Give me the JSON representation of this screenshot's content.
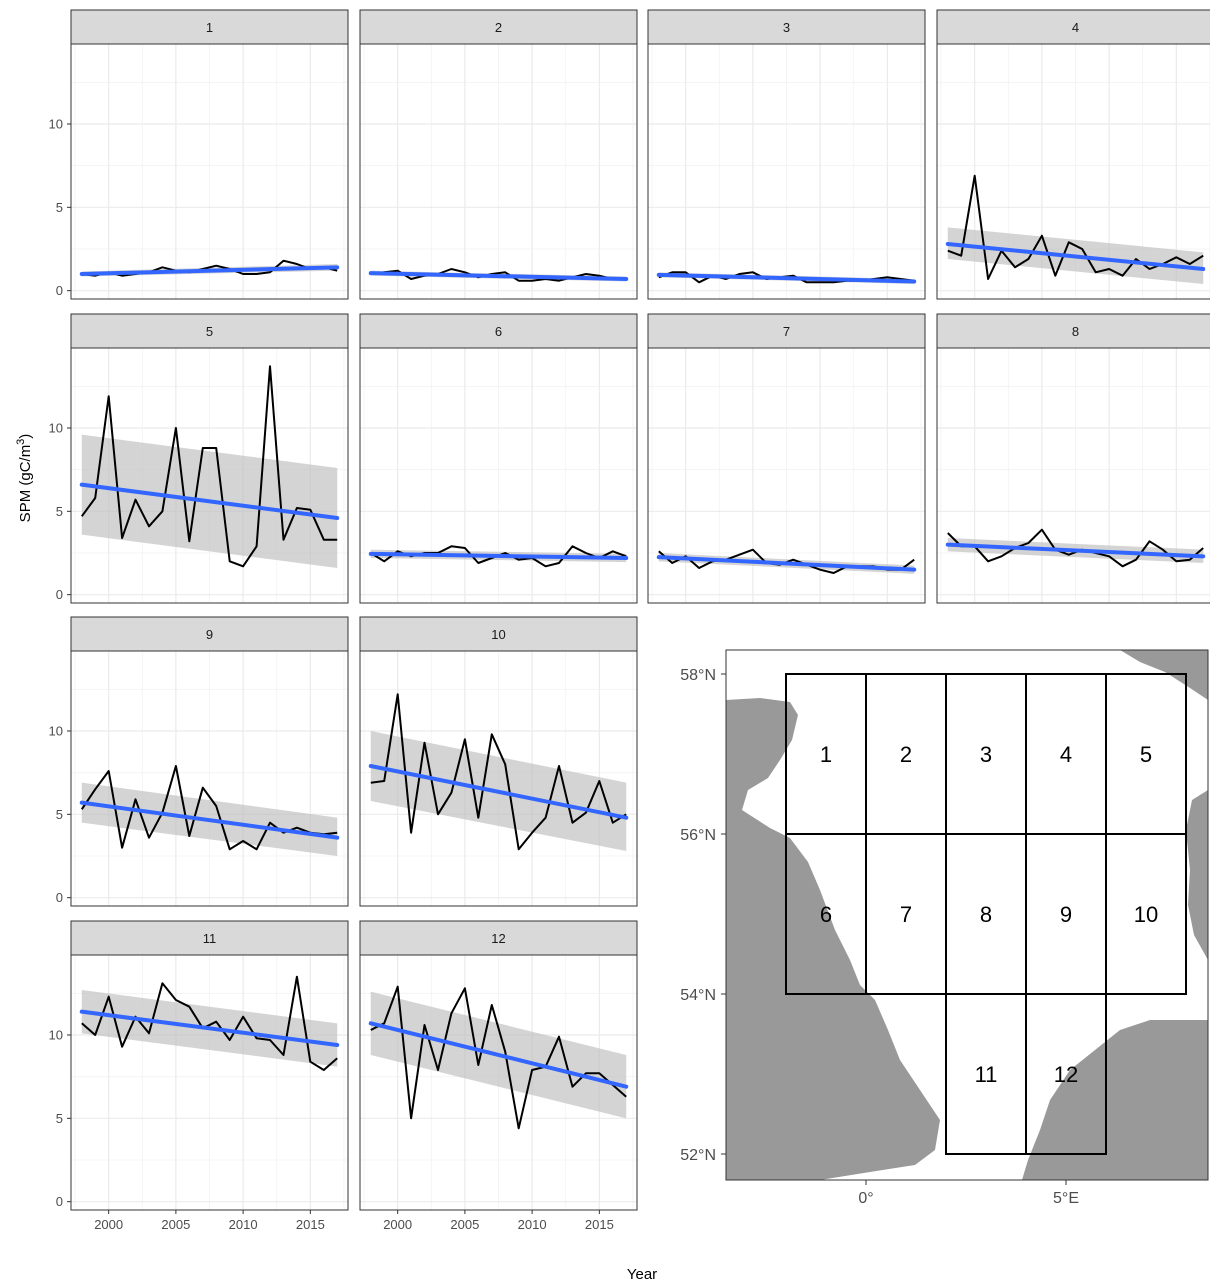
{
  "chart_data": {
    "type": "line",
    "xlabel": "Year",
    "ylabel": "SPM (gC/m",
    "ylabel_sup": "3",
    "ylabel_close": ")",
    "x_ticks": [
      2000,
      2005,
      2010,
      2015
    ],
    "xlim": [
      1997.2,
      2017.8
    ],
    "grid": true,
    "colors": {
      "observed": "#000000",
      "trend": "#3366ff",
      "ci": "#bdbdbd"
    },
    "x": [
      1998,
      1999,
      2000,
      2001,
      2002,
      2003,
      2004,
      2005,
      2006,
      2007,
      2008,
      2009,
      2010,
      2011,
      2012,
      2013,
      2014,
      2015,
      2016,
      2017
    ],
    "panels": [
      {
        "label": "1",
        "ylim": [
          -0.5,
          14.8
        ],
        "y_ticks": [
          0,
          5,
          10
        ],
        "values": [
          1.0,
          0.9,
          1.1,
          0.9,
          1.0,
          1.1,
          1.4,
          1.2,
          1.1,
          1.3,
          1.5,
          1.3,
          1.0,
          1.0,
          1.1,
          1.8,
          1.6,
          1.3,
          1.4,
          1.2
        ],
        "trend": [
          1.0,
          1.4
        ],
        "ci_start": [
          0.85,
          1.15
        ],
        "ci_end": [
          1.2,
          1.6
        ]
      },
      {
        "label": "2",
        "ylim": [
          -0.5,
          14.8
        ],
        "y_ticks": [
          0,
          5,
          10
        ],
        "values": [
          1.0,
          1.1,
          1.2,
          0.7,
          0.9,
          1.0,
          1.3,
          1.1,
          0.8,
          1.0,
          1.1,
          0.6,
          0.6,
          0.7,
          0.6,
          0.8,
          1.0,
          0.9,
          0.7,
          0.7
        ],
        "trend": [
          1.05,
          0.7
        ],
        "ci_start": [
          0.9,
          1.2
        ],
        "ci_end": [
          0.55,
          0.85
        ]
      },
      {
        "label": "3",
        "ylim": [
          -0.5,
          14.8
        ],
        "y_ticks": [
          0,
          5,
          10
        ],
        "values": [
          0.8,
          1.1,
          1.1,
          0.5,
          0.9,
          0.7,
          1.0,
          1.1,
          0.7,
          0.8,
          0.9,
          0.5,
          0.5,
          0.5,
          0.6,
          0.6,
          0.7,
          0.8,
          0.7,
          0.6
        ],
        "trend": [
          0.95,
          0.55
        ],
        "ci_start": [
          0.8,
          1.1
        ],
        "ci_end": [
          0.4,
          0.7
        ]
      },
      {
        "label": "4",
        "ylim": [
          -0.5,
          14.8
        ],
        "y_ticks": [
          0,
          5,
          10
        ],
        "values": [
          2.4,
          2.1,
          6.9,
          0.7,
          2.4,
          1.4,
          1.9,
          3.3,
          0.9,
          2.9,
          2.5,
          1.1,
          1.3,
          0.9,
          1.9,
          1.3,
          1.6,
          2.0,
          1.6,
          2.1
        ],
        "trend": [
          2.8,
          1.3
        ],
        "ci_start": [
          1.9,
          3.8
        ],
        "ci_end": [
          0.4,
          2.3
        ]
      },
      {
        "label": "5",
        "ylim": [
          -0.5,
          14.8
        ],
        "y_ticks": [
          0,
          5,
          10
        ],
        "values": [
          4.7,
          5.8,
          11.9,
          3.4,
          5.7,
          4.1,
          5.0,
          10.0,
          3.2,
          8.8,
          8.8,
          2.0,
          1.7,
          2.9,
          13.7,
          3.3,
          5.2,
          5.1,
          3.3,
          3.3
        ],
        "trend": [
          6.6,
          4.6
        ],
        "ci_start": [
          3.6,
          9.6
        ],
        "ci_end": [
          1.6,
          7.6
        ]
      },
      {
        "label": "6",
        "ylim": [
          -0.5,
          14.8
        ],
        "y_ticks": [
          0,
          5,
          10
        ],
        "values": [
          2.5,
          2.0,
          2.6,
          2.3,
          2.5,
          2.5,
          2.9,
          2.8,
          1.9,
          2.2,
          2.5,
          2.1,
          2.2,
          1.7,
          1.9,
          2.9,
          2.5,
          2.2,
          2.6,
          2.3
        ],
        "trend": [
          2.45,
          2.2
        ],
        "ci_start": [
          2.2,
          2.7
        ],
        "ci_end": [
          1.95,
          2.45
        ]
      },
      {
        "label": "7",
        "ylim": [
          -0.5,
          14.8
        ],
        "y_ticks": [
          0,
          5,
          10
        ],
        "values": [
          2.6,
          1.9,
          2.3,
          1.6,
          2.0,
          2.1,
          2.4,
          2.7,
          1.9,
          1.8,
          2.1,
          1.8,
          1.5,
          1.3,
          1.7,
          1.7,
          1.7,
          1.5,
          1.5,
          2.1
        ],
        "trend": [
          2.25,
          1.5
        ],
        "ci_start": [
          2.0,
          2.5
        ],
        "ci_end": [
          1.25,
          1.75
        ]
      },
      {
        "label": "8",
        "ylim": [
          -0.5,
          14.8
        ],
        "y_ticks": [
          0,
          5,
          10
        ],
        "values": [
          3.7,
          2.9,
          2.9,
          2.0,
          2.3,
          2.8,
          3.1,
          3.9,
          2.7,
          2.4,
          2.7,
          2.5,
          2.3,
          1.7,
          2.1,
          3.2,
          2.7,
          2.0,
          2.1,
          2.8
        ],
        "trend": [
          3.0,
          2.3
        ],
        "ci_start": [
          2.6,
          3.4
        ],
        "ci_end": [
          1.9,
          2.7
        ]
      },
      {
        "label": "9",
        "ylim": [
          -0.5,
          14.8
        ],
        "y_ticks": [
          0,
          5,
          10
        ],
        "values": [
          5.3,
          6.5,
          7.6,
          3.0,
          5.9,
          3.6,
          5.1,
          7.9,
          3.7,
          6.6,
          5.5,
          2.9,
          3.4,
          2.9,
          4.5,
          3.9,
          4.2,
          3.9,
          3.8,
          3.9
        ],
        "trend": [
          5.7,
          3.6
        ],
        "ci_start": [
          4.5,
          6.9
        ],
        "ci_end": [
          2.5,
          4.8
        ]
      },
      {
        "label": "10",
        "ylim": [
          -0.5,
          14.8
        ],
        "y_ticks": [
          0,
          5,
          10
        ],
        "values": [
          6.9,
          7.0,
          12.2,
          3.9,
          9.3,
          5.0,
          6.3,
          9.5,
          4.8,
          9.8,
          8.0,
          2.9,
          3.9,
          4.8,
          7.9,
          4.5,
          5.1,
          7.0,
          4.5,
          5.0
        ],
        "trend": [
          7.9,
          4.8
        ],
        "ci_start": [
          5.8,
          10.0
        ],
        "ci_end": [
          2.8,
          6.9
        ]
      },
      {
        "label": "11",
        "ylim": [
          -0.5,
          14.8
        ],
        "y_ticks": [
          0,
          5,
          10
        ],
        "values": [
          10.7,
          10.0,
          12.3,
          9.3,
          11.1,
          10.1,
          13.1,
          12.1,
          11.7,
          10.4,
          10.8,
          9.7,
          11.1,
          9.8,
          9.7,
          8.8,
          13.5,
          8.4,
          7.9,
          8.6
        ],
        "trend": [
          11.4,
          9.4
        ],
        "ci_start": [
          10.1,
          12.7
        ],
        "ci_end": [
          8.1,
          10.7
        ]
      },
      {
        "label": "12",
        "ylim": [
          -0.5,
          14.8
        ],
        "y_ticks": [
          0,
          5,
          10
        ],
        "values": [
          10.3,
          10.7,
          12.9,
          5.0,
          10.6,
          7.9,
          11.3,
          12.8,
          8.2,
          11.8,
          9.0,
          4.4,
          7.9,
          8.1,
          9.9,
          6.9,
          7.7,
          7.7,
          7.0,
          6.3
        ],
        "trend": [
          10.7,
          6.9
        ],
        "ci_start": [
          8.8,
          12.6
        ],
        "ci_end": [
          5.0,
          8.8
        ]
      }
    ],
    "map": {
      "lat_ticks": [
        {
          "label": "58°N",
          "lat": 58
        },
        {
          "label": "56°N",
          "lat": 56
        },
        {
          "label": "54°N",
          "lat": 54
        },
        {
          "label": "52°N",
          "lat": 52
        }
      ],
      "lon_ticks": [
        {
          "label": "0°",
          "lon": 0
        },
        {
          "label": "5°E",
          "lon": 5
        }
      ],
      "regions": [
        {
          "label": "1",
          "lon": [
            -2,
            0
          ],
          "lat": [
            56,
            58
          ]
        },
        {
          "label": "2",
          "lon": [
            0,
            2
          ],
          "lat": [
            56,
            58
          ]
        },
        {
          "label": "3",
          "lon": [
            2,
            4
          ],
          "lat": [
            56,
            58
          ]
        },
        {
          "label": "4",
          "lon": [
            4,
            6
          ],
          "lat": [
            56,
            58
          ]
        },
        {
          "label": "5",
          "lon": [
            6,
            8
          ],
          "lat": [
            56,
            58
          ]
        },
        {
          "label": "6",
          "lon": [
            -2,
            0
          ],
          "lat": [
            54,
            56
          ]
        },
        {
          "label": "7",
          "lon": [
            0,
            2
          ],
          "lat": [
            54,
            56
          ]
        },
        {
          "label": "8",
          "lon": [
            2,
            4
          ],
          "lat": [
            54,
            56
          ]
        },
        {
          "label": "9",
          "lon": [
            4,
            6
          ],
          "lat": [
            54,
            56
          ]
        },
        {
          "label": "10",
          "lon": [
            6,
            8
          ],
          "lat": [
            54,
            56
          ]
        },
        {
          "label": "11",
          "lon": [
            2,
            4
          ],
          "lat": [
            52,
            54
          ]
        },
        {
          "label": "12",
          "lon": [
            4,
            6
          ],
          "lat": [
            52,
            54
          ]
        }
      ],
      "land_color": "#999999"
    }
  }
}
